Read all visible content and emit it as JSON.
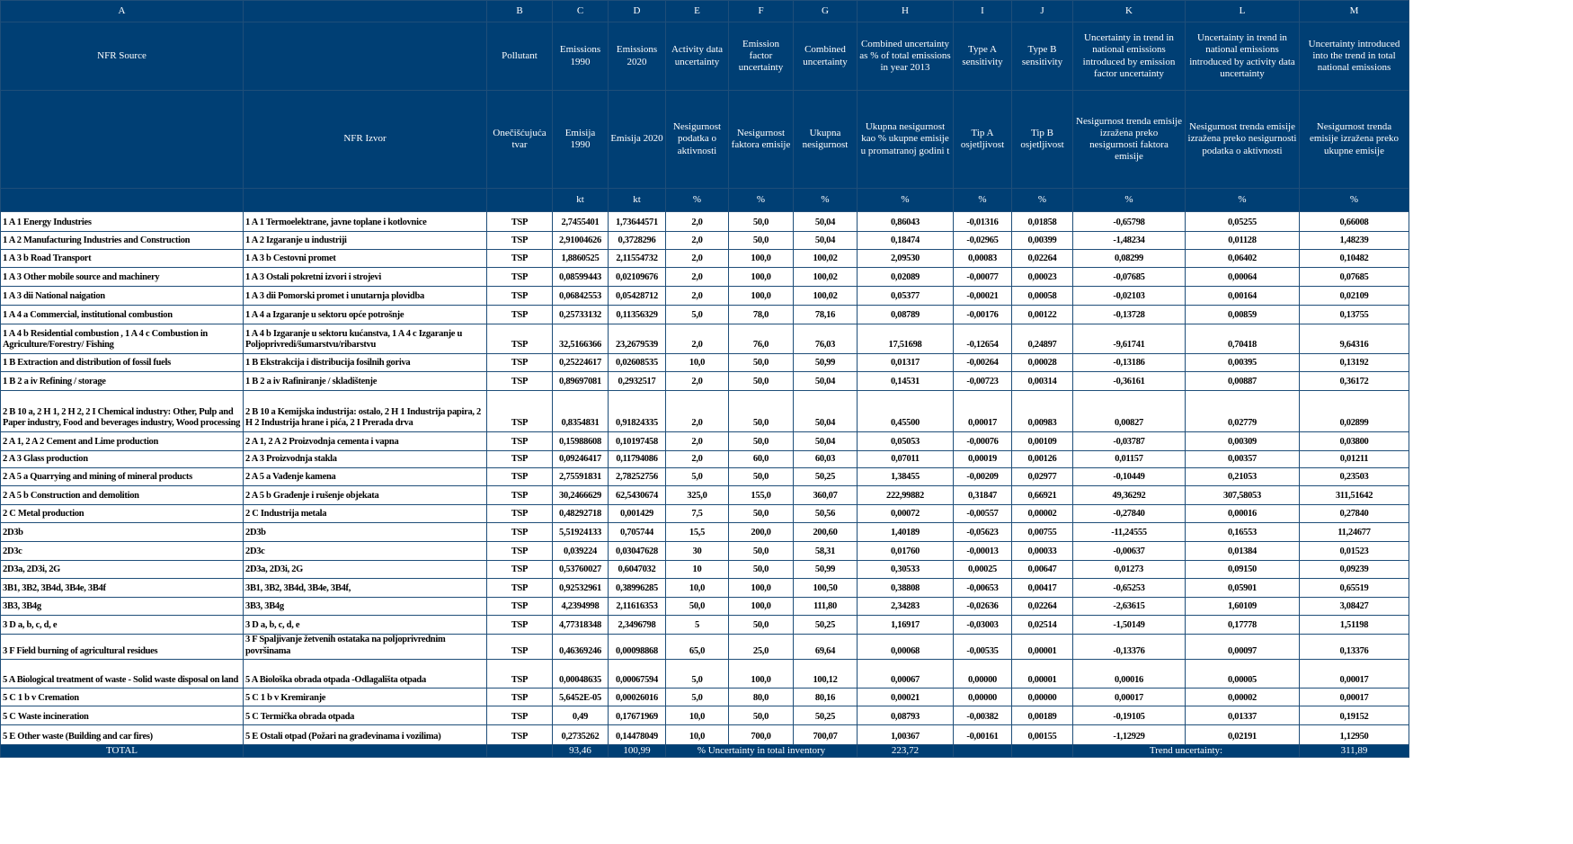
{
  "column_letters": [
    "A",
    "",
    "B",
    "C",
    "D",
    "E",
    "F",
    "G",
    "H",
    "I",
    "J",
    "K",
    "L",
    "M"
  ],
  "header_en": [
    "NFR Source",
    "",
    "Pollutant",
    "Emissions 1990",
    "Emissions 2020",
    "Activity data uncertainty",
    "Emission factor uncertainty",
    "Combined uncertainty",
    "Combined uncertainty as % of total emissions in year 2013",
    "Type A sensitivity",
    "Type B sensitivity",
    "Uncertainty in trend in national emissions introduced by emission factor uncertainty",
    "Uncertainty in trend in national emissions introduced by activity data uncertainty",
    "Uncertainty introduced into the trend in total national emissions"
  ],
  "header_hr": [
    "",
    "NFR Izvor",
    "Onečišćujuća tvar",
    "Emisija 1990",
    "Emisija 2020",
    "Nesigurnost podatka o aktivnosti",
    "Nesigurnost faktora emisije",
    "Ukupna nesigurnost",
    "Ukupna nesigurnost kao % ukupne emisije u promatranoj godini t",
    "Tip A osjetljivost",
    "Tip B osjetljivost",
    "Nesigurnost trenda emisije izražena preko nesigurnosti faktora emisije",
    "Nesigurnost trenda emisije izražena preko nesigurnosti podatka o aktivnosti",
    "Nesigurnost trenda emisije izražena preko ukupne emisije"
  ],
  "units": [
    "",
    "",
    "",
    "kt",
    "kt",
    "%",
    "%",
    "%",
    "%",
    "%",
    "%",
    "%",
    "%",
    "%"
  ],
  "rows": [
    [
      "1 A 1  Energy Industries",
      "1 A 1 Termoelektrane, javne toplane i kotlovnice",
      "TSP",
      "2,7455401",
      "1,73644571",
      "2,0",
      "50,0",
      "50,04",
      "0,86043",
      "-0,01316",
      "0,01858",
      "-0,65798",
      "0,05255",
      "0,66008"
    ],
    [
      "1 A 2  Manufacturing Industries and Construction",
      "1 A 2  Izgaranje u industriji",
      "TSP",
      "2,91004626",
      "0,3728296",
      "2,0",
      "50,0",
      "50,04",
      "0,18474",
      "-0,02965",
      "0,00399",
      "-1,48234",
      "0,01128",
      "1,48239"
    ],
    [
      "1 A 3 b Road Transport",
      "1 A 3  b Cestovni promet",
      "TSP",
      "1,8860525",
      "2,11554732",
      "2,0",
      "100,0",
      "100,02",
      "2,09530",
      "0,00083",
      "0,02264",
      "0,08299",
      "0,06402",
      "0,10482"
    ],
    [
      "1 A 3  Other mobile source and machinery",
      "1 A 3  Ostali pokretni izvori i strojevi",
      "TSP",
      "0,08599443",
      "0,02109676",
      "2,0",
      "100,0",
      "100,02",
      "0,02089",
      "-0,00077",
      "0,00023",
      "-0,07685",
      "0,00064",
      "0,07685"
    ],
    [
      "1 A 3 dii National naigation",
      "1 A 3 dii Pomorski promet i unutarnja plovidba",
      "TSP",
      "0,06842553",
      "0,05428712",
      "2,0",
      "100,0",
      "100,02",
      "0,05377",
      "-0,00021",
      "0,00058",
      "-0,02103",
      "0,00164",
      "0,02109"
    ],
    [
      "1 A 4 a Commercial, institutional  combustion",
      "1 A 4 a Izgaranje u sektoru opće potrošnje",
      "TSP",
      "0,25733132",
      "0,11356329",
      "5,0",
      "78,0",
      "78,16",
      "0,08789",
      "-0,00176",
      "0,00122",
      "-0,13728",
      "0,00859",
      "0,13755"
    ],
    [
      "1 A 4 b Residential combustion , 1 A 4 c  Combustion in Agriculture/Forestry/ Fishing",
      "1 A 4 b Izgaranje u sektoru kućanstva, 1 A 4 c  Izgaranje u Poljoprivredi/šumarstvu/ribarstvu",
      "TSP",
      "32,5166366",
      "23,2679539",
      "2,0",
      "76,0",
      "76,03",
      "17,51698",
      "-0,12654",
      "0,24897",
      "-9,61741",
      "0,70418",
      "9,64316"
    ],
    [
      "1 B  Extraction and distribution of fossil fuels",
      "1 B  Ekstrakcija i distribucija fosilnih goriva",
      "TSP",
      "0,25224617",
      "0,02608535",
      "10,0",
      "50,0",
      "50,99",
      "0,01317",
      "-0,00264",
      "0,00028",
      "-0,13186",
      "0,00395",
      "0,13192"
    ],
    [
      "1 B 2 a iv Refining / storage",
      "1 B 2 a iv Rafiniranje / skladištenje",
      "TSP",
      "0,89697081",
      "0,2932517",
      "2,0",
      "50,0",
      "50,04",
      "0,14531",
      "-0,00723",
      "0,00314",
      "-0,36161",
      "0,00887",
      "0,36172"
    ],
    [
      "2 B 10 a, 2 H 1, 2 H 2, 2 I Chemical industry: Other, Pulp and Paper industry, Food and beverages industry, Wood processing",
      "2 B 10 a Kemijska industrija: ostalo,  2 H 1 Industrija papira, 2 H 2 Industrija hrane i pića, 2 I Prerada drva",
      "TSP",
      "0,8354831",
      "0,91824335",
      "2,0",
      "50,0",
      "50,04",
      "0,45500",
      "0,00017",
      "0,00983",
      "0,00827",
      "0,02779",
      "0,02899"
    ],
    [
      "2 A 1, 2 A 2 Cement and Lime production",
      "2 A 1, 2 A 2  Proizvodnja cementa i vapna",
      "TSP",
      "0,15988608",
      "0,10197458",
      "2,0",
      "50,0",
      "50,04",
      "0,05053",
      "-0,00076",
      "0,00109",
      "-0,03787",
      "0,00309",
      "0,03800"
    ],
    [
      "2 A 3  Glass production",
      "2 A 3  Proizvodnja stakla",
      "TSP",
      "0,09246417",
      "0,11794086",
      "2,0",
      "60,0",
      "60,03",
      "0,07011",
      "0,00019",
      "0,00126",
      "0,01157",
      "0,00357",
      "0,01211"
    ],
    [
      "2 A 5 a Quarrying and mining of mineral products",
      "2 A 5 a Vađenje kamena",
      "TSP",
      "2,75591831",
      "2,78252756",
      "5,0",
      "50,0",
      "50,25",
      "1,38455",
      "-0,00209",
      "0,02977",
      "-0,10449",
      "0,21053",
      "0,23503"
    ],
    [
      "2 A 5 b Construction and demolition",
      "2 A 5 b Građenje i rušenje objekata",
      "TSP",
      "30,2466629",
      "62,5430674",
      "325,0",
      "155,0",
      "360,07",
      "222,99882",
      "0,31847",
      "0,66921",
      "49,36292",
      "307,58053",
      "311,51642"
    ],
    [
      "2 C  Metal production",
      "2 C  Industrija metala",
      "TSP",
      "0,48292718",
      "0,001429",
      "7,5",
      "50,0",
      "50,56",
      "0,00072",
      "-0,00557",
      "0,00002",
      "-0,27840",
      "0,00016",
      "0,27840"
    ],
    [
      "2D3b",
      "2D3b",
      "TSP",
      "5,51924133",
      "0,705744",
      "15,5",
      "200,0",
      "200,60",
      "1,40189",
      "-0,05623",
      "0,00755",
      "-11,24555",
      "0,16553",
      "11,24677"
    ],
    [
      "2D3c",
      "2D3c",
      "TSP",
      "0,039224",
      "0,03047628",
      "30",
      "50,0",
      "58,31",
      "0,01760",
      "-0,00013",
      "0,00033",
      "-0,00637",
      "0,01384",
      "0,01523"
    ],
    [
      "2D3a, 2D3i, 2G",
      "2D3a, 2D3i, 2G",
      "TSP",
      "0,53760027",
      "0,6047032",
      "10",
      "50,0",
      "50,99",
      "0,30533",
      "0,00025",
      "0,00647",
      "0,01273",
      "0,09150",
      "0,09239"
    ],
    [
      "3B1, 3B2, 3B4d, 3B4e, 3B4f",
      "3B1, 3B2, 3B4d, 3B4e, 3B4f,",
      "TSP",
      "0,92532961",
      "0,38996285",
      "10,0",
      "100,0",
      "100,50",
      "0,38808",
      "-0,00653",
      "0,00417",
      "-0,65253",
      "0,05901",
      "0,65519"
    ],
    [
      "3B3, 3B4g",
      "3B3, 3B4g",
      "TSP",
      "4,2394998",
      "2,11616353",
      "50,0",
      "100,0",
      "111,80",
      "2,34283",
      "-0,02636",
      "0,02264",
      "-2,63615",
      "1,60109",
      "3,08427"
    ],
    [
      "3 D a, b, c, d, e",
      "3 D a, b, c, d, e",
      "TSP",
      "4,77318348",
      "2,3496798",
      "5",
      "50,0",
      "50,25",
      "1,16917",
      "-0,03003",
      "0,02514",
      "-1,50149",
      "0,17778",
      "1,51198"
    ],
    [
      "3 F Field burning of agricultural residues",
      "3 F Spaljivanje žetvenih ostataka na poljoprivrednim površinama",
      "TSP",
      "0,46369246",
      "0,00098868",
      "65,0",
      "25,0",
      "69,64",
      "0,00068",
      "-0,00535",
      "0,00001",
      "-0,13376",
      "0,00097",
      "0,13376"
    ],
    [
      "5 A Biological treatment of waste - Solid waste disposal on land",
      "5 A Biološka obrada otpada -Odlagališta otpada",
      "TSP",
      "0,00048635",
      "0,00067594",
      "5,0",
      "100,0",
      "100,12",
      "0,00067",
      "0,00000",
      "0,00001",
      "0,00016",
      "0,00005",
      "0,00017"
    ],
    [
      "5 C 1 b v  Cremation",
      "5 C 1 b v  Kremiranje",
      "TSP",
      "5,6452E-05",
      "0,00026016",
      "5,0",
      "80,0",
      "80,16",
      "0,00021",
      "0,00000",
      "0,00000",
      "0,00017",
      "0,00002",
      "0,00017"
    ],
    [
      "5 C Waste incineration",
      "5 C  Termička obrada otpada",
      "TSP",
      "0,49",
      "0,17671969",
      "10,0",
      "50,0",
      "50,25",
      "0,08793",
      "-0,00382",
      "0,00189",
      "-0,19105",
      "0,01337",
      "0,19152"
    ],
    [
      "5 E Other waste (Building and car fires)",
      "5 E Ostali otpad (Požari na građevinama i vozilima)",
      "TSP",
      "0,2735262",
      "0,14478049",
      "10,0",
      "700,0",
      "700,07",
      "1,00367",
      "-0,00161",
      "0,00155",
      "-1,12929",
      "0,02191",
      "1,12950"
    ]
  ],
  "total": {
    "label": "TOTAL",
    "emissions_1990": "93,46",
    "emissions_2020": "100,99",
    "inventory_uncertainty_label": "% Uncertainty in total inventory",
    "inventory_uncertainty": "223,72",
    "trend_uncertainty_label": "Trend uncertainty:",
    "trend_uncertainty": "311,89"
  },
  "colors": {
    "header_bg": "#003f74",
    "grid": "#1f4e79"
  }
}
